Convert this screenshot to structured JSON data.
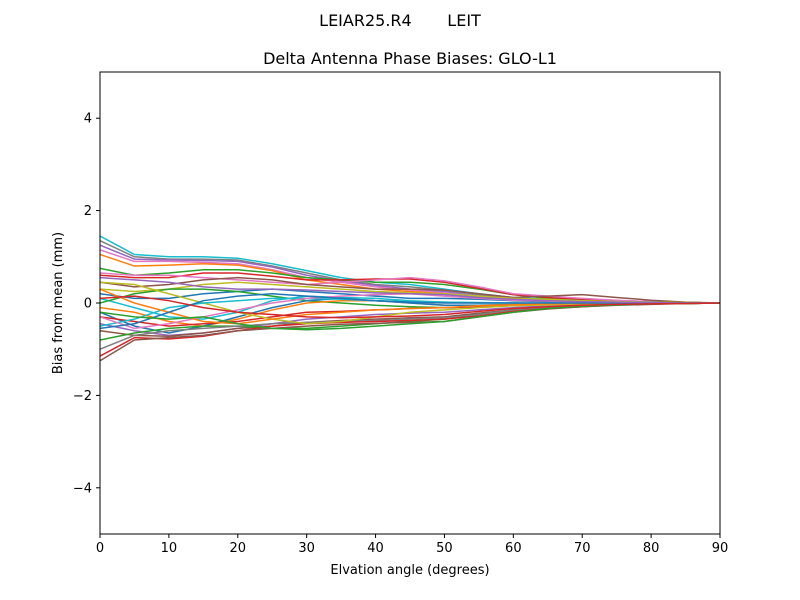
{
  "figure": {
    "suptitle": "LEIAR25.R4       LEIT"
  },
  "chart_data": {
    "type": "line",
    "title": "Delta Antenna Phase Biases: GLO-L1",
    "xlabel": "Elvation angle (degrees)",
    "ylabel": "Bias from mean (mm)",
    "xlim": [
      0,
      90
    ],
    "ylim": [
      -5,
      5
    ],
    "xticks": [
      0,
      10,
      20,
      30,
      40,
      50,
      60,
      70,
      80,
      90
    ],
    "yticks": [
      -4,
      -2,
      0,
      2,
      4
    ],
    "ytick_labels": [
      "−4",
      "−2",
      "0",
      "2",
      "4"
    ],
    "grid": false,
    "legend": "none",
    "x": [
      0,
      5,
      10,
      15,
      20,
      25,
      30,
      35,
      40,
      45,
      50,
      55,
      60,
      65,
      70,
      75,
      80,
      85,
      90
    ],
    "series": [
      {
        "color": "#17becf",
        "values": [
          1.45,
          1.05,
          1.0,
          1.0,
          0.97,
          0.85,
          0.7,
          0.55,
          0.45,
          0.4,
          0.3,
          0.2,
          0.12,
          0.08,
          0.05,
          0.03,
          0.02,
          0.01,
          0.0
        ]
      },
      {
        "color": "#7f7f7f",
        "values": [
          1.35,
          1.0,
          0.95,
          0.95,
          0.93,
          0.8,
          0.65,
          0.5,
          0.4,
          0.35,
          0.28,
          0.18,
          0.1,
          0.06,
          0.04,
          0.03,
          0.02,
          0.01,
          0.0
        ]
      },
      {
        "color": "#9467bd",
        "values": [
          1.25,
          0.95,
          0.93,
          0.92,
          0.9,
          0.78,
          0.6,
          0.48,
          0.38,
          0.3,
          0.25,
          0.15,
          0.1,
          0.06,
          0.04,
          0.02,
          0.01,
          0.0,
          0.0
        ]
      },
      {
        "color": "#e377c2",
        "values": [
          1.15,
          0.9,
          0.9,
          0.88,
          0.85,
          0.72,
          0.55,
          0.45,
          0.35,
          0.28,
          0.22,
          0.14,
          0.08,
          0.05,
          0.03,
          0.02,
          0.01,
          0.0,
          0.0
        ]
      },
      {
        "color": "#ff7f0e",
        "values": [
          1.05,
          0.8,
          0.82,
          0.85,
          0.82,
          0.7,
          0.5,
          0.4,
          0.3,
          0.25,
          0.2,
          0.12,
          0.07,
          0.05,
          0.03,
          0.02,
          0.01,
          0.0,
          0.0
        ]
      },
      {
        "color": "#2ca02c",
        "values": [
          0.75,
          0.6,
          0.65,
          0.72,
          0.72,
          0.65,
          0.55,
          0.5,
          0.45,
          0.45,
          0.4,
          0.3,
          0.18,
          0.1,
          0.06,
          0.03,
          0.02,
          0.01,
          0.0
        ]
      },
      {
        "color": "#d62728",
        "values": [
          0.6,
          0.55,
          0.55,
          0.65,
          0.65,
          0.58,
          0.5,
          0.5,
          0.52,
          0.52,
          0.45,
          0.32,
          0.18,
          0.12,
          0.08,
          0.05,
          0.03,
          0.01,
          0.0
        ]
      },
      {
        "color": "#e377c2",
        "values": [
          0.65,
          0.6,
          0.6,
          0.55,
          0.5,
          0.45,
          0.4,
          0.45,
          0.5,
          0.55,
          0.48,
          0.35,
          0.2,
          0.15,
          0.1,
          0.06,
          0.03,
          0.01,
          0.0
        ]
      },
      {
        "color": "#8c564b",
        "values": [
          0.45,
          0.35,
          0.4,
          0.5,
          0.55,
          0.5,
          0.4,
          0.35,
          0.3,
          0.3,
          0.28,
          0.2,
          0.12,
          0.15,
          0.18,
          0.12,
          0.06,
          0.02,
          0.0
        ]
      },
      {
        "color": "#bcbd22",
        "values": [
          0.3,
          0.25,
          0.3,
          0.4,
          0.45,
          0.4,
          0.35,
          0.3,
          0.25,
          0.22,
          0.2,
          0.15,
          0.1,
          0.08,
          0.05,
          0.03,
          0.02,
          0.01,
          0.0
        ]
      },
      {
        "color": "#1f77b4",
        "values": [
          0.2,
          0.1,
          0.1,
          0.2,
          0.25,
          0.3,
          0.25,
          0.2,
          0.15,
          0.1,
          0.1,
          0.08,
          0.05,
          0.03,
          0.02,
          0.01,
          0.01,
          0.0,
          0.0
        ]
      },
      {
        "color": "#17becf",
        "values": [
          0.1,
          -0.1,
          -0.3,
          -0.35,
          -0.2,
          0.05,
          0.15,
          0.12,
          0.1,
          0.05,
          0.02,
          0.0,
          0.0,
          -0.02,
          -0.02,
          -0.01,
          0.0,
          0.0,
          0.0
        ]
      },
      {
        "color": "#2ca02c",
        "values": [
          0.0,
          0.2,
          0.3,
          0.3,
          0.25,
          0.15,
          0.05,
          0.0,
          -0.05,
          -0.08,
          -0.1,
          -0.08,
          -0.05,
          -0.03,
          -0.02,
          -0.01,
          0.0,
          0.0,
          0.0
        ]
      },
      {
        "color": "#ff7f0e",
        "values": [
          -0.1,
          -0.2,
          -0.4,
          -0.5,
          -0.35,
          -0.15,
          0.0,
          0.05,
          0.05,
          0.0,
          -0.05,
          -0.05,
          -0.03,
          -0.02,
          -0.01,
          0.0,
          0.0,
          0.0,
          0.0
        ]
      },
      {
        "color": "#1f77b4",
        "values": [
          -0.2,
          -0.5,
          -0.65,
          -0.5,
          -0.3,
          -0.1,
          0.05,
          0.1,
          0.05,
          0.0,
          -0.05,
          -0.05,
          -0.04,
          -0.03,
          -0.02,
          -0.01,
          0.0,
          0.0,
          0.0
        ]
      },
      {
        "color": "#d62728",
        "values": [
          -0.3,
          -0.4,
          -0.5,
          -0.45,
          -0.4,
          -0.3,
          -0.2,
          -0.18,
          -0.15,
          -0.12,
          -0.1,
          -0.08,
          -0.05,
          -0.03,
          -0.02,
          -0.01,
          0.0,
          0.0,
          0.0
        ]
      },
      {
        "color": "#9467bd",
        "values": [
          -0.45,
          -0.6,
          -0.7,
          -0.65,
          -0.55,
          -0.45,
          -0.35,
          -0.3,
          -0.25,
          -0.22,
          -0.2,
          -0.15,
          -0.1,
          -0.06,
          -0.04,
          -0.02,
          -0.01,
          0.0,
          0.0
        ]
      },
      {
        "color": "#8c564b",
        "values": [
          -0.6,
          -0.7,
          -0.72,
          -0.65,
          -0.55,
          -0.5,
          -0.42,
          -0.38,
          -0.35,
          -0.32,
          -0.3,
          -0.22,
          -0.15,
          -0.1,
          -0.06,
          -0.03,
          -0.02,
          -0.01,
          0.0
        ]
      },
      {
        "color": "#2ca02c",
        "values": [
          -0.8,
          -0.65,
          -0.55,
          -0.5,
          -0.5,
          -0.55,
          -0.55,
          -0.5,
          -0.45,
          -0.4,
          -0.35,
          -0.25,
          -0.15,
          -0.1,
          -0.06,
          -0.03,
          -0.02,
          -0.01,
          0.0
        ]
      },
      {
        "color": "#7f7f7f",
        "values": [
          -1.0,
          -0.7,
          -0.6,
          -0.55,
          -0.5,
          -0.45,
          -0.42,
          -0.4,
          -0.38,
          -0.35,
          -0.32,
          -0.25,
          -0.15,
          -0.1,
          -0.06,
          -0.03,
          -0.02,
          -0.01,
          0.0
        ]
      },
      {
        "color": "#d62728",
        "values": [
          -1.15,
          -0.75,
          -0.78,
          -0.72,
          -0.6,
          -0.5,
          -0.45,
          -0.42,
          -0.4,
          -0.38,
          -0.35,
          -0.28,
          -0.18,
          -0.12,
          -0.08,
          -0.04,
          -0.02,
          -0.01,
          0.0
        ]
      },
      {
        "color": "#8c564b",
        "values": [
          -1.25,
          -0.8,
          -0.75,
          -0.7,
          -0.6,
          -0.55,
          -0.5,
          -0.46,
          -0.44,
          -0.42,
          -0.4,
          -0.3,
          -0.2,
          -0.13,
          -0.08,
          -0.05,
          -0.03,
          -0.01,
          0.0
        ]
      },
      {
        "color": "#bcbd22",
        "values": [
          0.45,
          0.4,
          0.2,
          0.0,
          -0.2,
          -0.35,
          -0.45,
          -0.4,
          -0.3,
          -0.2,
          -0.15,
          -0.1,
          -0.06,
          -0.04,
          -0.02,
          -0.01,
          0.0,
          0.0,
          0.0
        ]
      },
      {
        "color": "#17becf",
        "values": [
          -0.5,
          -0.35,
          -0.1,
          0.0,
          0.05,
          0.1,
          0.1,
          0.08,
          0.05,
          0.03,
          0.02,
          0.01,
          0.0,
          0.0,
          0.0,
          0.0,
          0.0,
          0.0,
          0.0
        ]
      },
      {
        "color": "#e377c2",
        "values": [
          -0.3,
          -0.55,
          -0.45,
          -0.3,
          -0.15,
          0.0,
          0.1,
          0.15,
          0.18,
          0.2,
          0.15,
          0.1,
          0.06,
          0.04,
          0.02,
          0.01,
          0.0,
          0.0,
          0.0
        ]
      },
      {
        "color": "#ff7f0e",
        "values": [
          0.3,
          0.0,
          -0.2,
          -0.4,
          -0.45,
          -0.35,
          -0.25,
          -0.2,
          -0.15,
          -0.12,
          -0.1,
          -0.06,
          -0.04,
          -0.02,
          -0.01,
          0.0,
          0.0,
          0.0,
          0.0
        ]
      },
      {
        "color": "#1f77b4",
        "values": [
          -0.55,
          -0.45,
          -0.2,
          0.05,
          0.15,
          0.2,
          0.15,
          0.1,
          0.05,
          0.02,
          0.0,
          0.0,
          0.0,
          0.0,
          0.0,
          0.0,
          0.0,
          0.0,
          0.0
        ]
      },
      {
        "color": "#9467bd",
        "values": [
          0.55,
          0.5,
          0.45,
          0.35,
          0.3,
          0.3,
          0.28,
          0.25,
          0.22,
          0.2,
          0.18,
          0.12,
          0.08,
          0.05,
          0.03,
          0.02,
          0.01,
          0.0,
          0.0
        ]
      },
      {
        "color": "#2ca02c",
        "values": [
          -0.2,
          -0.3,
          -0.35,
          -0.3,
          -0.45,
          -0.55,
          -0.58,
          -0.55,
          -0.5,
          -0.45,
          -0.4,
          -0.3,
          -0.2,
          -0.12,
          -0.07,
          -0.04,
          -0.02,
          -0.01,
          0.0
        ]
      },
      {
        "color": "#d62728",
        "values": [
          0.1,
          0.15,
          0.05,
          -0.1,
          -0.2,
          -0.25,
          -0.3,
          -0.32,
          -0.3,
          -0.28,
          -0.25,
          -0.18,
          -0.12,
          -0.08,
          -0.05,
          -0.03,
          -0.02,
          -0.01,
          0.0
        ]
      }
    ]
  }
}
